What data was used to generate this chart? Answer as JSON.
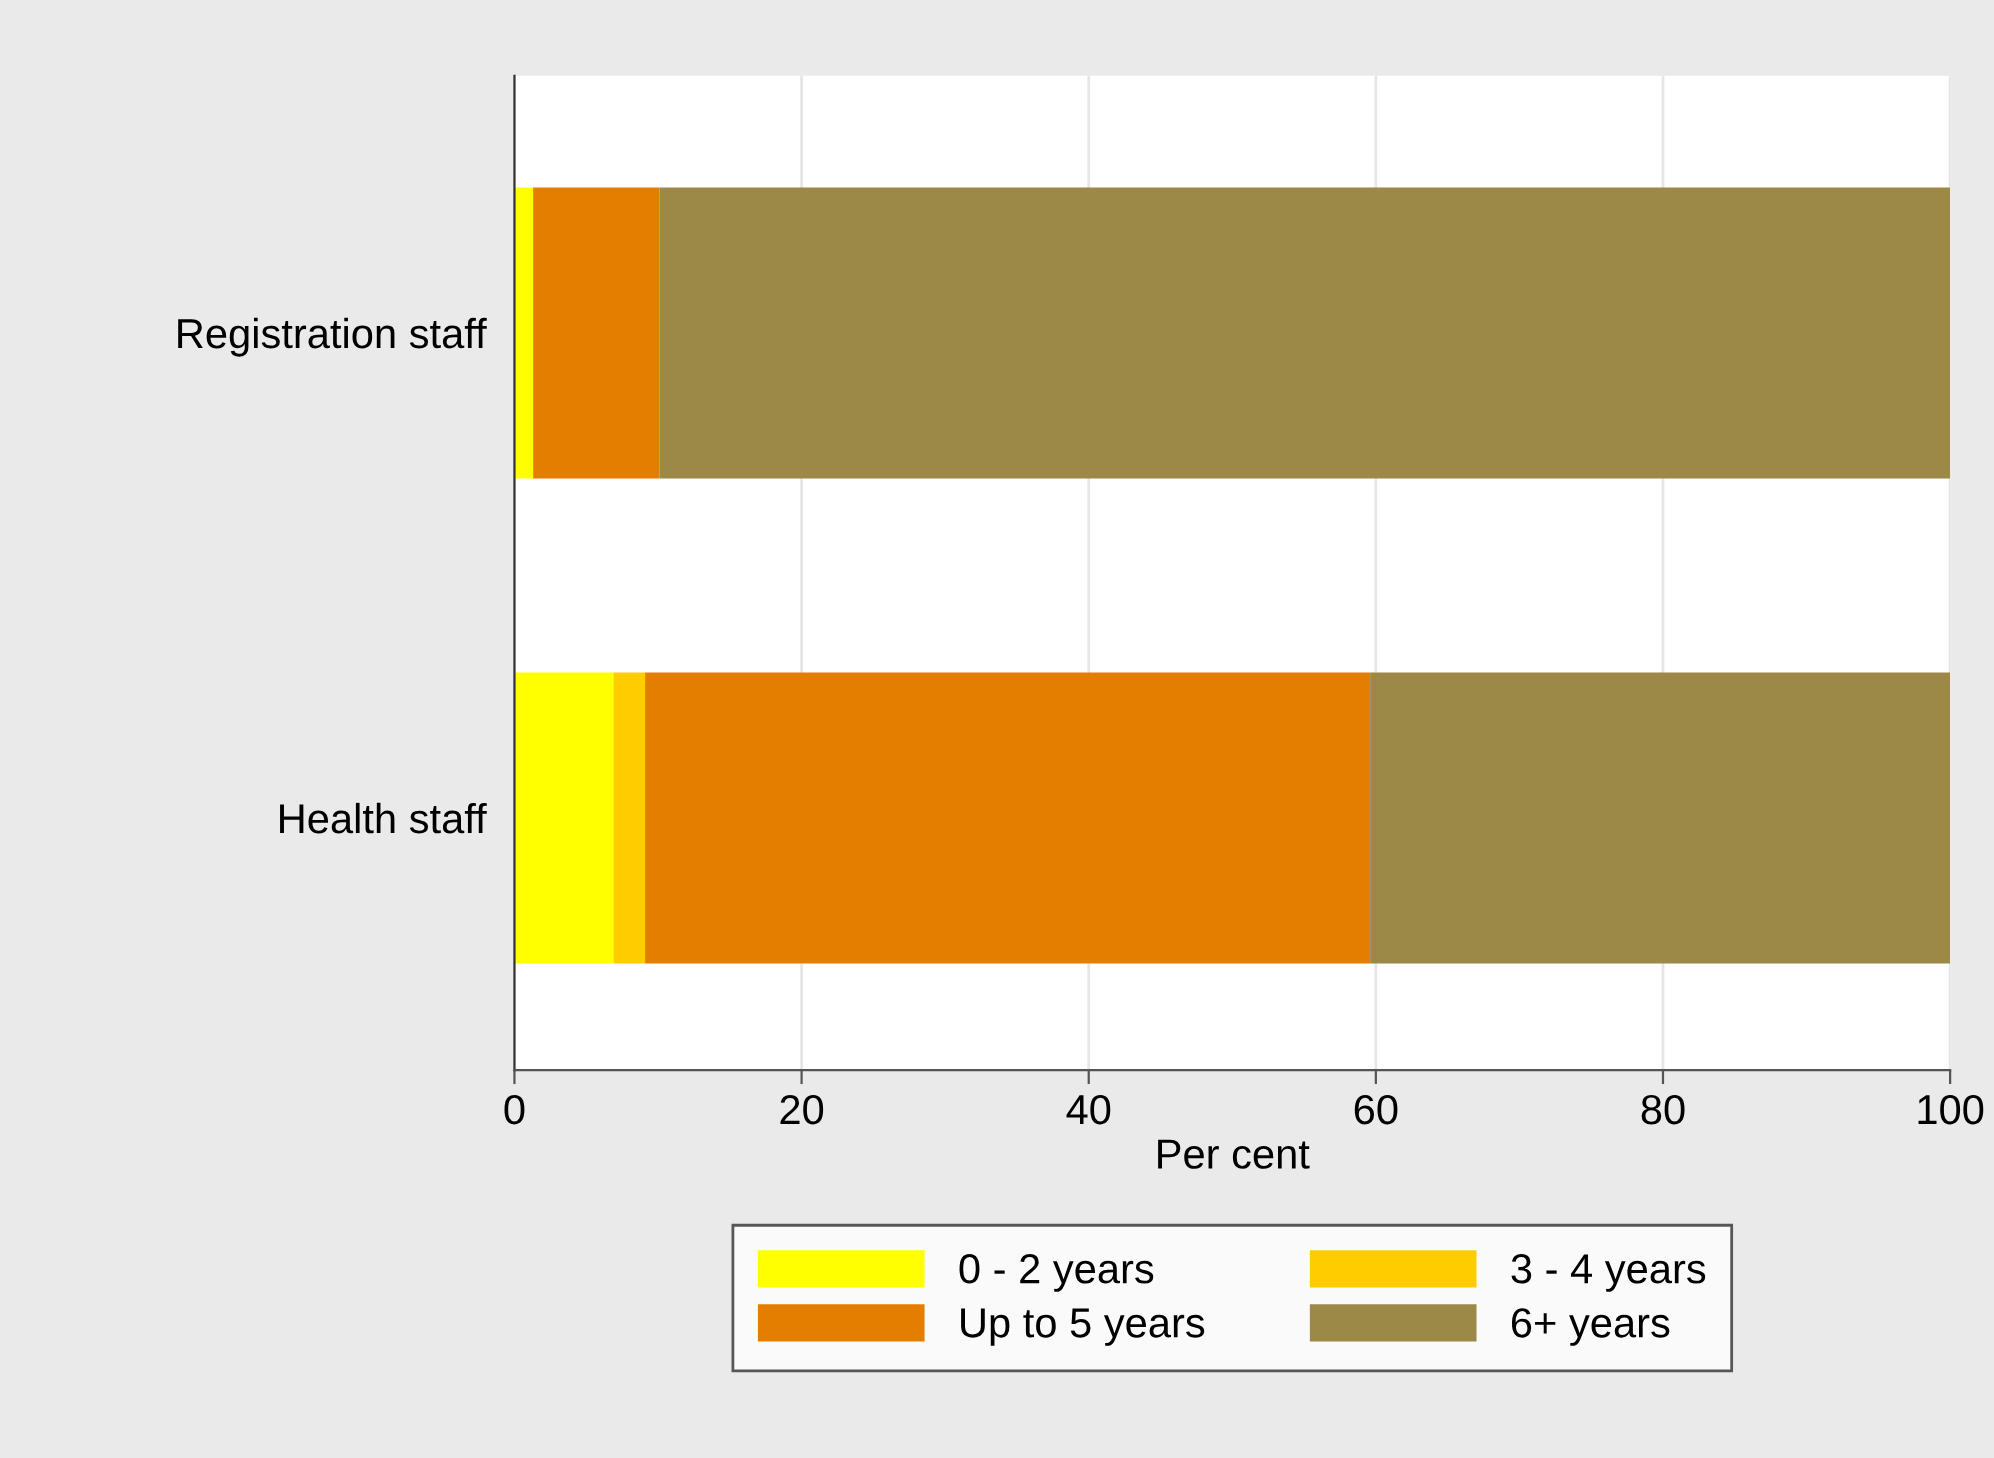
{
  "chart_data": {
    "type": "bar",
    "orientation": "horizontal",
    "stacked": true,
    "categories": [
      "Registration staff",
      "Health staff"
    ],
    "series": [
      {
        "name": "0 - 2 years",
        "color": "#ffff00",
        "values": [
          1.3,
          6.9
        ]
      },
      {
        "name": "3 - 4 years",
        "color": "#ffcc00",
        "values": [
          0,
          2.2
        ]
      },
      {
        "name": "Up to 5 years",
        "color": "#e37e00",
        "values": [
          8.8,
          50.5
        ]
      },
      {
        "name": "6+ years",
        "color": "#9c8847",
        "values": [
          89.9,
          40.4
        ]
      }
    ],
    "xlabel": "Per cent",
    "xlim": [
      0,
      100
    ],
    "xticks": [
      0,
      20,
      40,
      60,
      80,
      100
    ],
    "grid": "x",
    "legend": "bottom"
  }
}
